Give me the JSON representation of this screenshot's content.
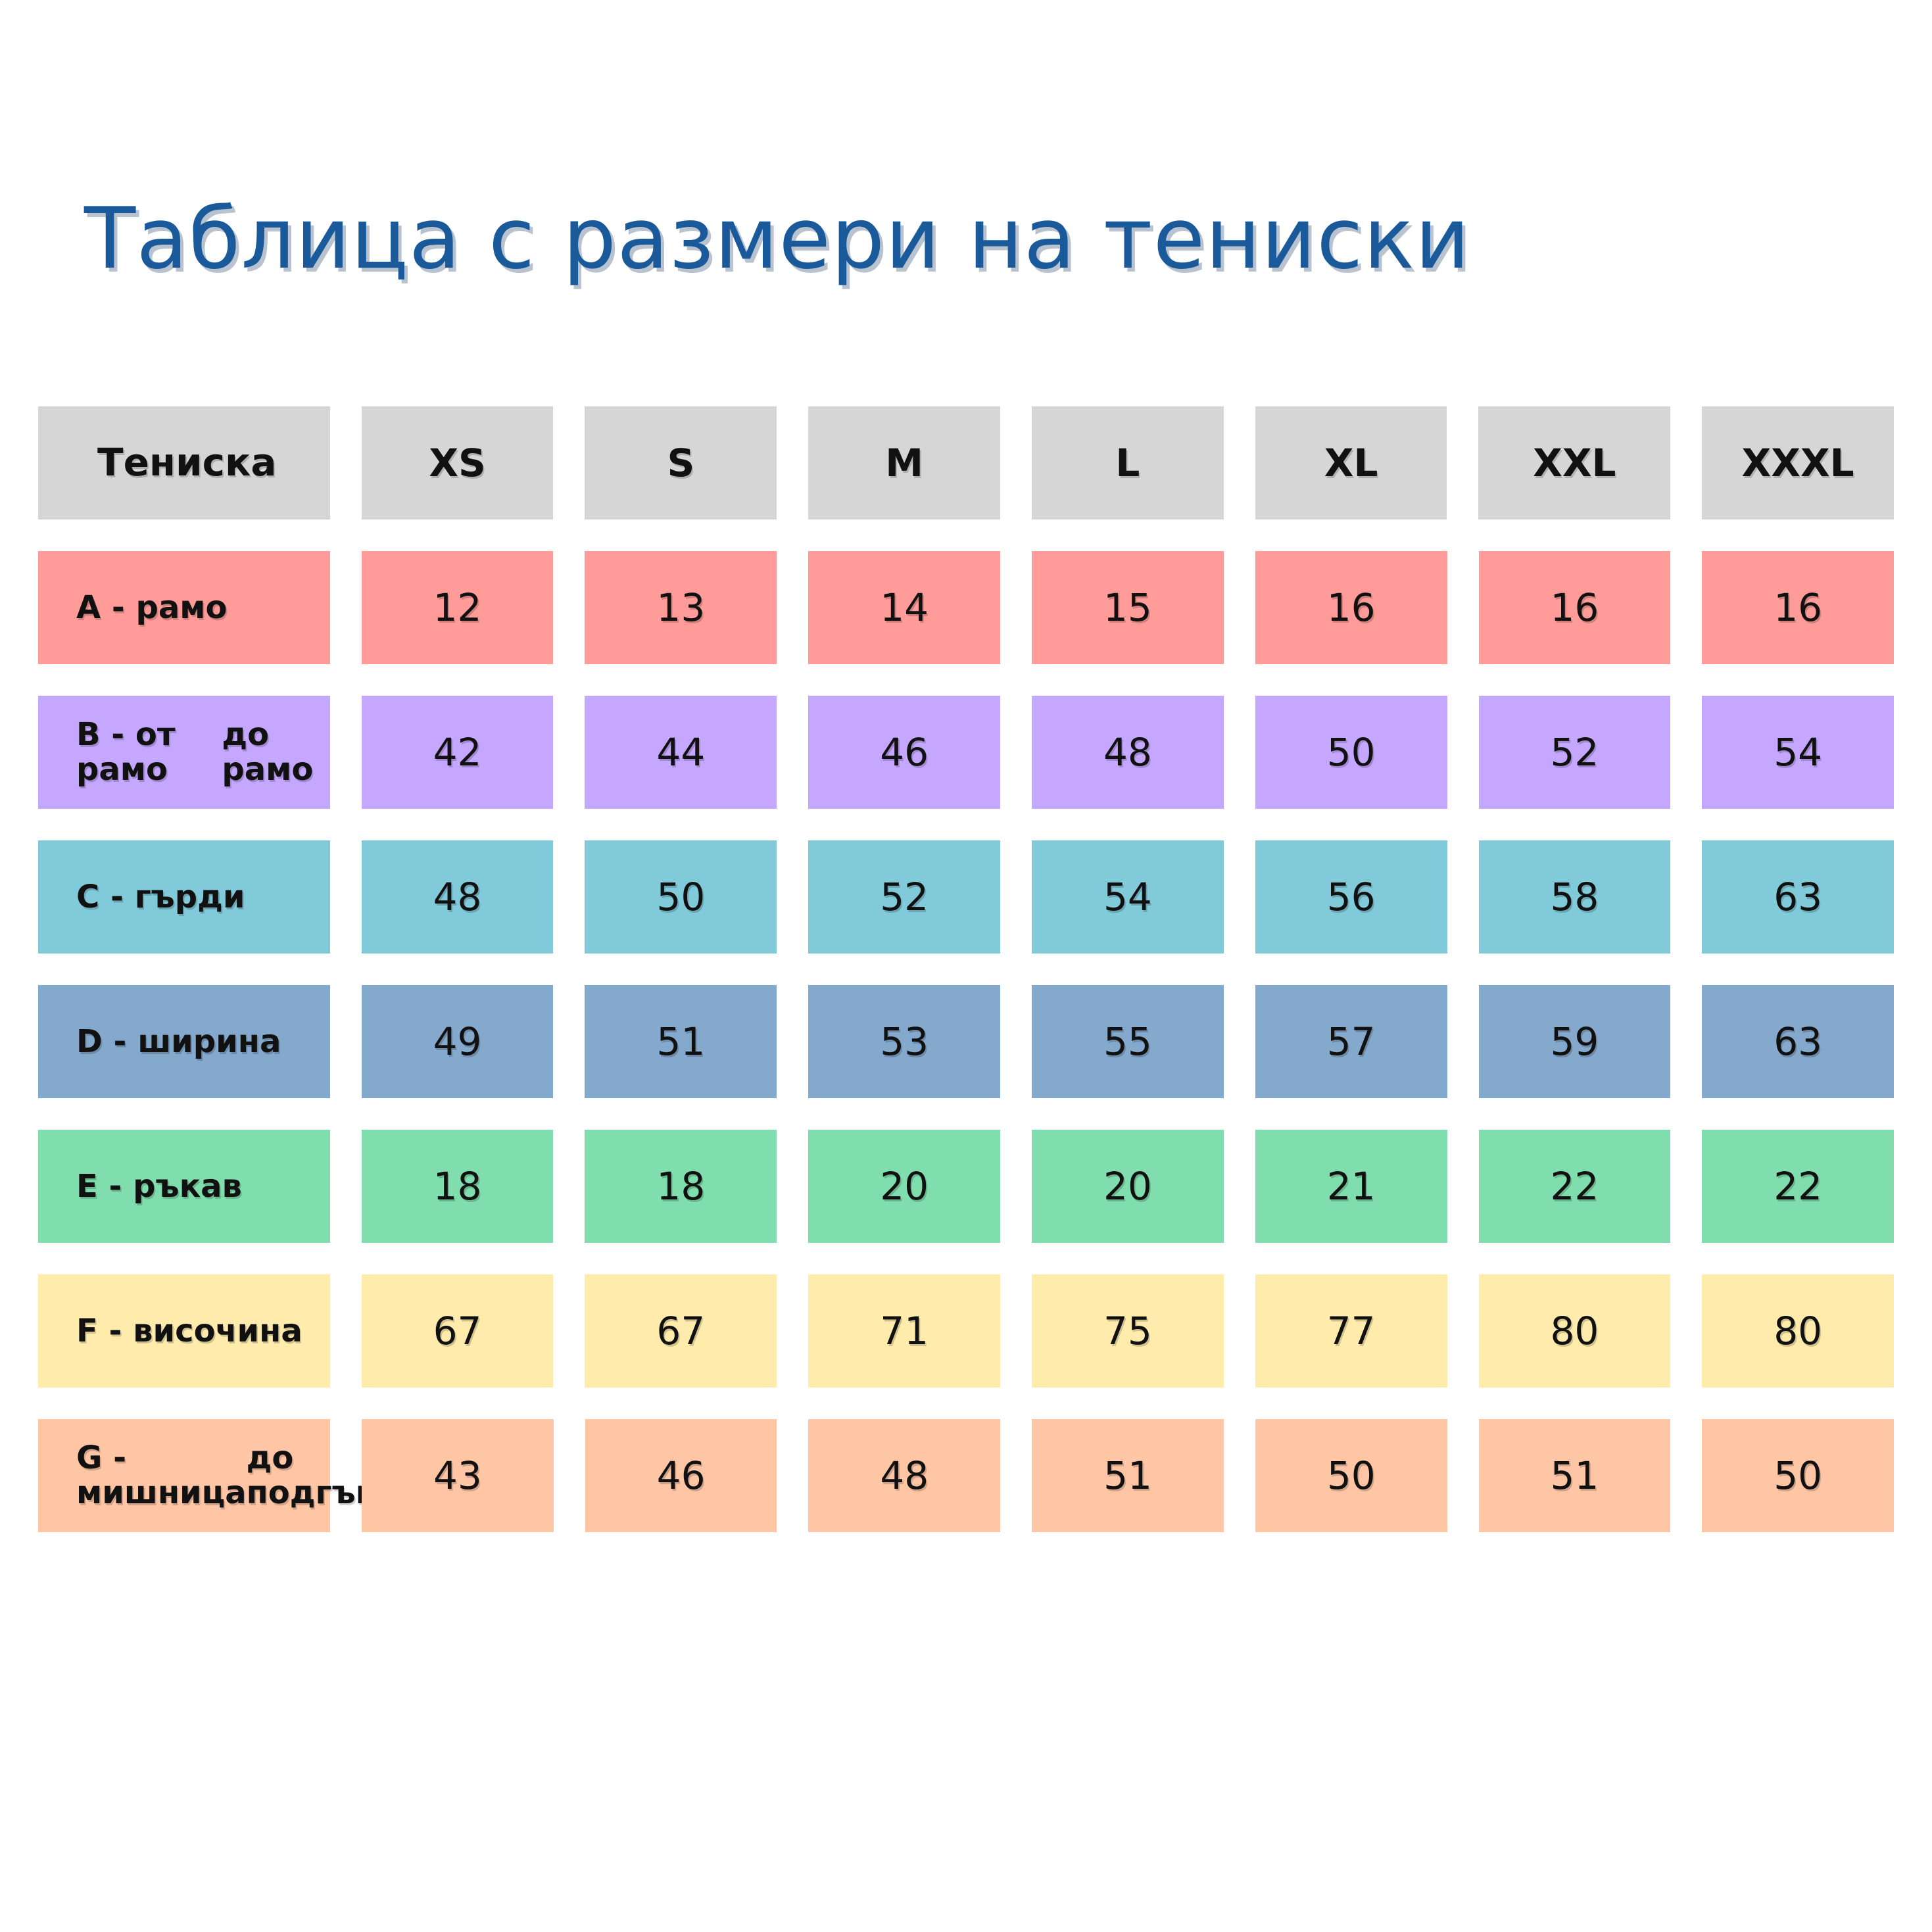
{
  "title": "Таблица с размери на тениски",
  "header": {
    "label": "Тениска",
    "sizes": [
      "XS",
      "S",
      "M",
      "L",
      "XL",
      "XXL",
      "XXXL"
    ],
    "color": "#d6d6d6"
  },
  "rows": [
    {
      "label_line1": "A - рамо",
      "label_line2": "",
      "values": [
        "12",
        "13",
        "14",
        "15",
        "16",
        "16",
        "16"
      ],
      "color": "#ff9b98"
    },
    {
      "label_line1": "B - от рамо",
      "label_line2": "до рамо",
      "values": [
        "42",
        "44",
        "46",
        "48",
        "50",
        "52",
        "54"
      ],
      "color": "#c5a7ff"
    },
    {
      "label_line1": "C - гърди",
      "label_line2": "",
      "values": [
        "48",
        "50",
        "52",
        "54",
        "56",
        "58",
        "63"
      ],
      "color": "#80cad9"
    },
    {
      "label_line1": "D - ширина",
      "label_line2": "",
      "values": [
        "49",
        "51",
        "53",
        "55",
        "57",
        "59",
        "63"
      ],
      "color": "#84a9cd"
    },
    {
      "label_line1": "E - ръкав",
      "label_line2": "",
      "values": [
        "18",
        "18",
        "20",
        "20",
        "21",
        "22",
        "22"
      ],
      "color": "#80deae"
    },
    {
      "label_line1": "F - височина",
      "label_line2": "",
      "values": [
        "67",
        "67",
        "71",
        "75",
        "77",
        "80",
        "80"
      ],
      "color": "#ffecad"
    },
    {
      "label_line1": "G - мишница",
      "label_line2": "до подгъв",
      "values": [
        "43",
        "46",
        "48",
        "51",
        "50",
        "51",
        "50"
      ],
      "color": "#ffc6a6"
    }
  ]
}
